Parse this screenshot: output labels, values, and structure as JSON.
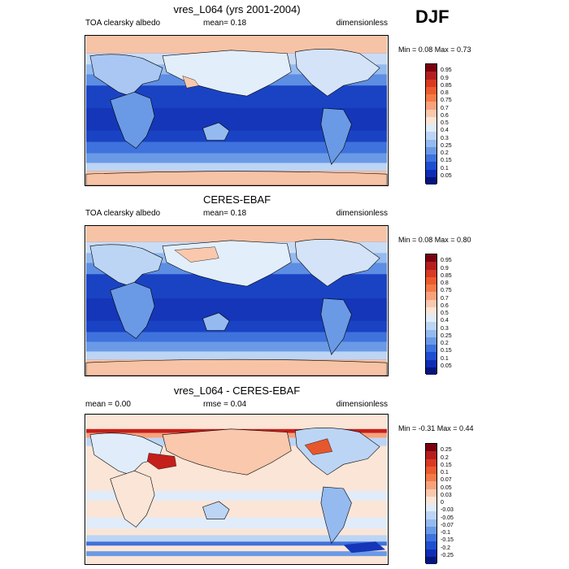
{
  "season": "DJF",
  "panels": [
    {
      "title": "vres_L064 (yrs 2001-2004)",
      "left_label": "TOA clearsky albedo",
      "center_label": "mean=   0.18",
      "right_label": "dimensionless",
      "minmax": "Min =   0.08 Max =   0.73",
      "colorbar": {
        "ticks": [
          "0.95",
          "0.9",
          "0.85",
          "0.8",
          "0.75",
          "0.7",
          "0.6",
          "0.5",
          "0.4",
          "0.3",
          "0.25",
          "0.2",
          "0.15",
          "0.1",
          "0.05"
        ],
        "colors": [
          "#7a0010",
          "#b41e1e",
          "#d83a22",
          "#eb5b2d",
          "#f47b48",
          "#f7a27d",
          "#f9c8ad",
          "#fbe5d7",
          "#e0ecfa",
          "#bcd5f5",
          "#94baf0",
          "#6a9ae6",
          "#3f72dc",
          "#1f4fd0",
          "#0e2db5",
          "#06157a"
        ]
      }
    },
    {
      "title": "CERES-EBAF",
      "left_label": "TOA clearsky albedo",
      "center_label": "mean=   0.18",
      "right_label": "dimensionless",
      "minmax": "Min =   0.08 Max =   0.80",
      "colorbar": {
        "ticks": [
          "0.95",
          "0.9",
          "0.85",
          "0.8",
          "0.75",
          "0.7",
          "0.6",
          "0.5",
          "0.4",
          "0.3",
          "0.25",
          "0.2",
          "0.15",
          "0.1",
          "0.05"
        ],
        "colors": [
          "#7a0010",
          "#b41e1e",
          "#d83a22",
          "#eb5b2d",
          "#f47b48",
          "#f7a27d",
          "#f9c8ad",
          "#fbe5d7",
          "#e0ecfa",
          "#bcd5f5",
          "#94baf0",
          "#6a9ae6",
          "#3f72dc",
          "#1f4fd0",
          "#0e2db5",
          "#06157a"
        ]
      }
    },
    {
      "title": "vres_L064 - CERES-EBAF",
      "left_label": "mean =   0.00",
      "center_label": "rmse =   0.04",
      "right_label": "dimensionless",
      "minmax": "Min =  -0.31 Max =   0.44",
      "colorbar": {
        "ticks": [
          "0.25",
          "0.2",
          "0.15",
          "0.1",
          "0.07",
          "0.05",
          "0.03",
          "0",
          "-0.03",
          "-0.05",
          "-0.07",
          "-0.1",
          "-0.15",
          "-0.2",
          "-0.25"
        ],
        "colors": [
          "#7a0010",
          "#b41e1e",
          "#d83a22",
          "#eb5b2d",
          "#f47b48",
          "#f7a27d",
          "#f9c8ad",
          "#fbe5d7",
          "#e0ecfa",
          "#bcd5f5",
          "#94baf0",
          "#6a9ae6",
          "#3f72dc",
          "#1f4fd0",
          "#0e2db5",
          "#06157a"
        ]
      }
    }
  ]
}
